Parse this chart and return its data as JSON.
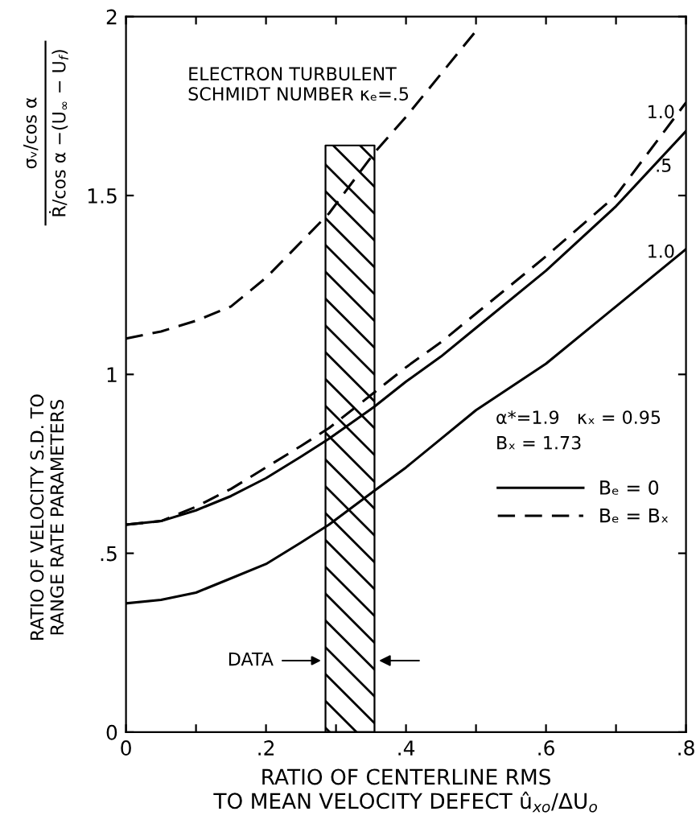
{
  "chart_data": {
    "type": "line",
    "xlabel": "RATIO OF CENTERLINE RMS\nTO MEAN VELOCITY DEFECT û$_{xo}$/ΔU$_{o}$",
    "ylabel": "RATIO OF VELOCITY S.D. TO\nRANGE RATE PARAMETERS",
    "xlim": [
      0,
      0.8
    ],
    "ylim": [
      0,
      2
    ],
    "xticks": [
      0,
      {
        "value": 0.1,
        "label": null
      },
      {
        "value": 0.2,
        "label": ".2"
      },
      {
        "value": 0.3,
        "label": null
      },
      {
        "value": 0.4,
        "label": ".4"
      },
      {
        "value": 0.5,
        "label": null
      },
      {
        "value": 0.6,
        "label": ".6"
      },
      {
        "value": 0.7,
        "label": null
      },
      {
        "value": 0.8,
        "label": ".8"
      }
    ],
    "yticks": [
      0,
      {
        "value": 0.5,
        "label": ".5"
      },
      1,
      1.5,
      2
    ],
    "x": [
      0,
      0.05,
      0.1,
      0.15,
      0.2,
      0.25,
      0.29,
      0.355,
      0.4,
      0.45,
      0.5,
      0.6,
      0.7,
      0.8
    ],
    "series": [
      {
        "name": "Bₑ = 0",
        "color": "#000000",
        "line_style": "solid",
        "values": [
          0.58,
          0.59,
          0.62,
          0.66,
          0.71,
          0.77,
          0.82,
          0.91,
          0.98,
          1.05,
          1.13,
          1.29,
          1.47,
          1.68
        ]
      },
      {
        "name": "Bₑ = Bₓ",
        "color": "#000000",
        "line_style": "dashed",
        "values": [
          0.58,
          0.59,
          0.63,
          0.68,
          0.74,
          0.8,
          0.85,
          0.95,
          1.02,
          1.09,
          1.17,
          1.33,
          1.5,
          1.76
        ]
      },
      {
        "color": "#000000",
        "line_style": "dashed",
        "values": [
          1.1,
          1.12,
          1.15,
          1.19,
          1.27,
          1.37,
          1.45,
          1.62,
          1.72,
          1.84,
          1.96,
          null,
          null,
          null
        ]
      },
      {
        "color": "#000000",
        "line_style": "solid",
        "values": [
          0.36,
          0.37,
          0.39,
          0.43,
          0.47,
          0.53,
          0.58,
          0.675,
          0.74,
          0.82,
          0.9,
          1.03,
          1.19,
          1.35
        ]
      }
    ],
    "marker": "none",
    "grid": false,
    "legend": "right",
    "bands": [
      {
        "axis": "x",
        "from": 0.285,
        "to": 0.355,
        "label": "DATA"
      }
    ],
    "annotations": [
      "σᵥ/cos α",
      "Ṙ/cos α −(U$_{∞}$ − U$_{f}$)",
      "ELECTRON TURBULENT\nSCHMIDT NUMBER κₑ=.5",
      "α*=1.9   κₓ = 0.95\nBₓ = 1.73",
      "1.0",
      ".5",
      "1.0"
    ]
  }
}
